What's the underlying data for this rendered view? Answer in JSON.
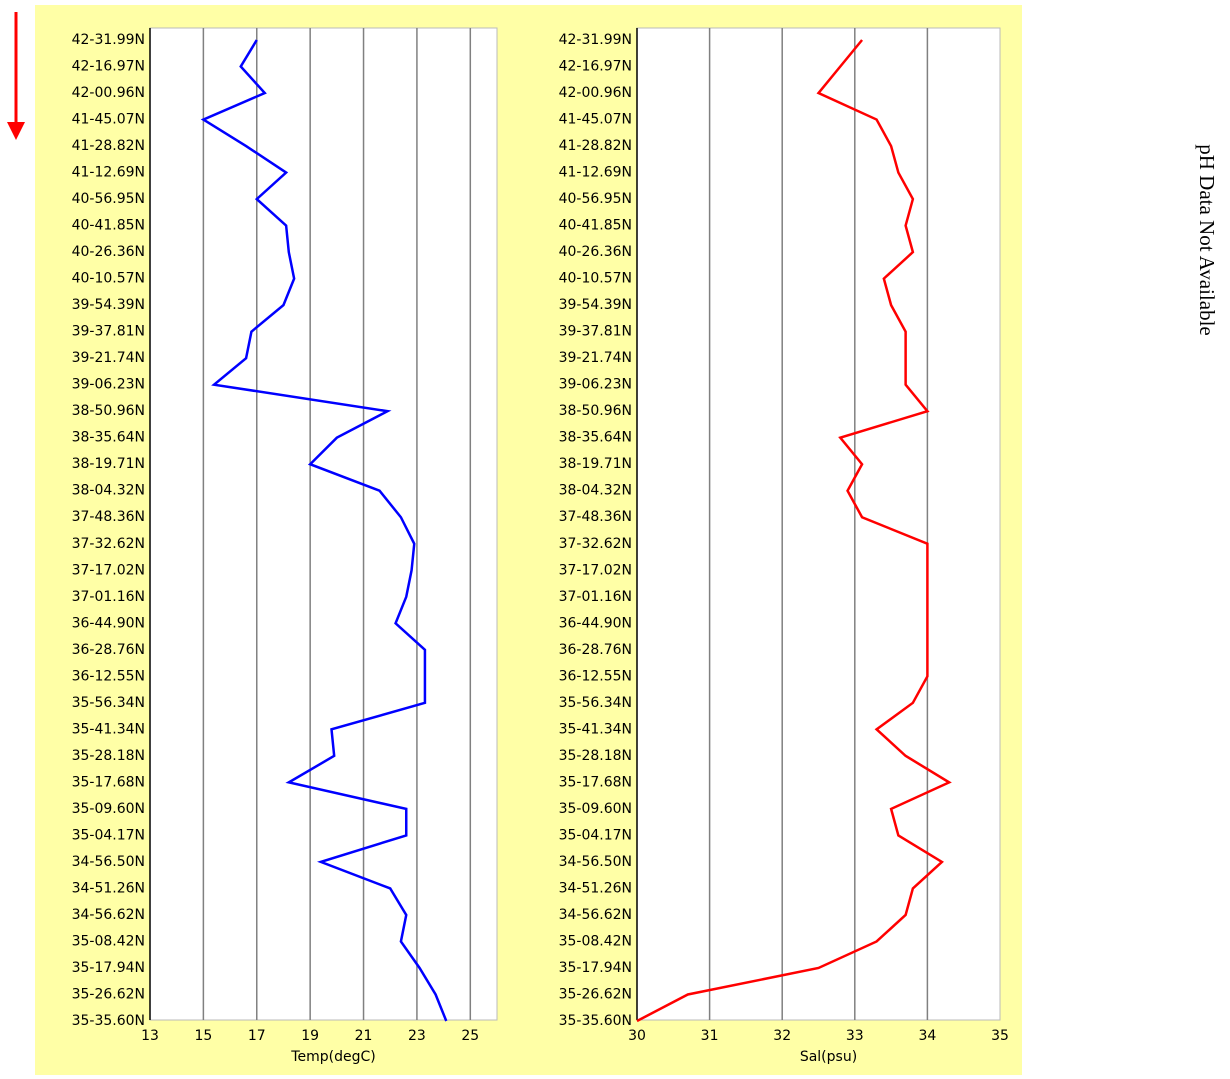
{
  "chart_data": [
    {
      "type": "line",
      "xlabel": "Temp(degC)",
      "categories": [
        "42-31.99N",
        "42-16.97N",
        "42-00.96N",
        "41-45.07N",
        "41-28.82N",
        "41-12.69N",
        "40-56.95N",
        "40-41.85N",
        "40-26.36N",
        "40-10.57N",
        "39-54.39N",
        "39-37.81N",
        "39-21.74N",
        "39-06.23N",
        "38-50.96N",
        "38-35.64N",
        "38-19.71N",
        "38-04.32N",
        "37-48.36N",
        "37-32.62N",
        "37-17.02N",
        "37-01.16N",
        "36-44.90N",
        "36-28.76N",
        "36-12.55N",
        "35-56.34N",
        "35-41.34N",
        "35-28.18N",
        "35-17.68N",
        "35-09.60N",
        "35-04.17N",
        "34-56.50N",
        "34-51.26N",
        "34-56.62N",
        "35-08.42N",
        "35-17.94N",
        "35-26.62N",
        "35-35.60N"
      ],
      "values": [
        17.0,
        16.4,
        17.3,
        15.0,
        16.6,
        18.1,
        17.0,
        18.1,
        18.2,
        18.4,
        18.0,
        16.8,
        16.6,
        15.4,
        21.9,
        20.0,
        19.0,
        21.6,
        22.4,
        22.9,
        22.8,
        22.6,
        22.2,
        23.3,
        23.3,
        23.3,
        19.8,
        19.9,
        18.2,
        22.6,
        22.6,
        19.4,
        22.0,
        22.6,
        22.4,
        23.1,
        23.7,
        24.1
      ],
      "color": "#0000ff",
      "xlim": [
        13,
        26
      ],
      "xticks": [
        13,
        15,
        17,
        19,
        21,
        23,
        25
      ],
      "grid": true
    },
    {
      "type": "line",
      "xlabel": "Sal(psu)",
      "categories": [
        "42-31.99N",
        "42-16.97N",
        "42-00.96N",
        "41-45.07N",
        "41-28.82N",
        "41-12.69N",
        "40-56.95N",
        "40-41.85N",
        "40-26.36N",
        "40-10.57N",
        "39-54.39N",
        "39-37.81N",
        "39-21.74N",
        "39-06.23N",
        "38-50.96N",
        "38-35.64N",
        "38-19.71N",
        "38-04.32N",
        "37-48.36N",
        "37-32.62N",
        "37-17.02N",
        "37-01.16N",
        "36-44.90N",
        "36-28.76N",
        "36-12.55N",
        "35-56.34N",
        "35-41.34N",
        "35-28.18N",
        "35-17.68N",
        "35-09.60N",
        "35-04.17N",
        "34-56.50N",
        "34-51.26N",
        "34-56.62N",
        "35-08.42N",
        "35-17.94N",
        "35-26.62N",
        "35-35.60N"
      ],
      "values": [
        33.1,
        32.8,
        32.5,
        33.3,
        33.5,
        33.6,
        33.8,
        33.7,
        33.8,
        33.4,
        33.5,
        33.7,
        33.7,
        33.7,
        34.0,
        32.8,
        33.1,
        32.9,
        33.1,
        34.0,
        34.0,
        34.0,
        34.0,
        34.0,
        34.0,
        33.8,
        33.3,
        33.7,
        34.3,
        33.5,
        33.6,
        34.2,
        33.8,
        33.7,
        33.3,
        32.5,
        30.7,
        30.0
      ],
      "color": "#ff0000",
      "xlim": [
        30,
        35
      ],
      "xticks": [
        30,
        31,
        32,
        33,
        34,
        35
      ],
      "grid": true
    }
  ],
  "note": "pH Data Not Available"
}
